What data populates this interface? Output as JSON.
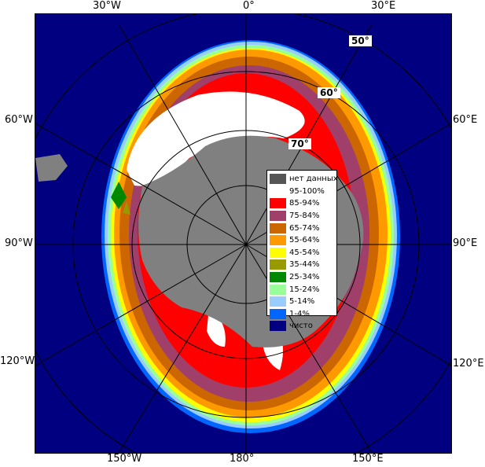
{
  "lon_labels": {
    "w30": "30°W",
    "zero": "0°",
    "e30": "30°E",
    "w60": "60°W",
    "e60": "60°E",
    "w90": "90°W",
    "e90": "90°E",
    "w120": "120°W",
    "e120": "120°E",
    "w150": "150°W",
    "e180": "180°",
    "e150": "150°E"
  },
  "lat_labels": {
    "lat50": "50°",
    "lat60": "60°",
    "lat70": "70°"
  },
  "legend": {
    "items": [
      {
        "label": "нет данных",
        "color": "#555555"
      },
      {
        "label": "95-100%",
        "color": "#ffffff"
      },
      {
        "label": "85-94%",
        "color": "#ff0000"
      },
      {
        "label": "75-84%",
        "color": "#a0406a"
      },
      {
        "label": "65-74%",
        "color": "#cc6600"
      },
      {
        "label": "55-64%",
        "color": "#ff9900"
      },
      {
        "label": "45-54%",
        "color": "#ffff00"
      },
      {
        "label": "35-44%",
        "color": "#999900"
      },
      {
        "label": "25-34%",
        "color": "#008800"
      },
      {
        "label": "15-24%",
        "color": "#99ff99"
      },
      {
        "label": "5-14%",
        "color": "#99ccff"
      },
      {
        "label": "1-4%",
        "color": "#0066ff"
      },
      {
        "label": "чисто",
        "color": "#000080"
      }
    ]
  },
  "colors": {
    "ocean": "#000080",
    "land_mask": "#808080",
    "grid": "#000000",
    "grid_faint": "#c8c8c8"
  }
}
